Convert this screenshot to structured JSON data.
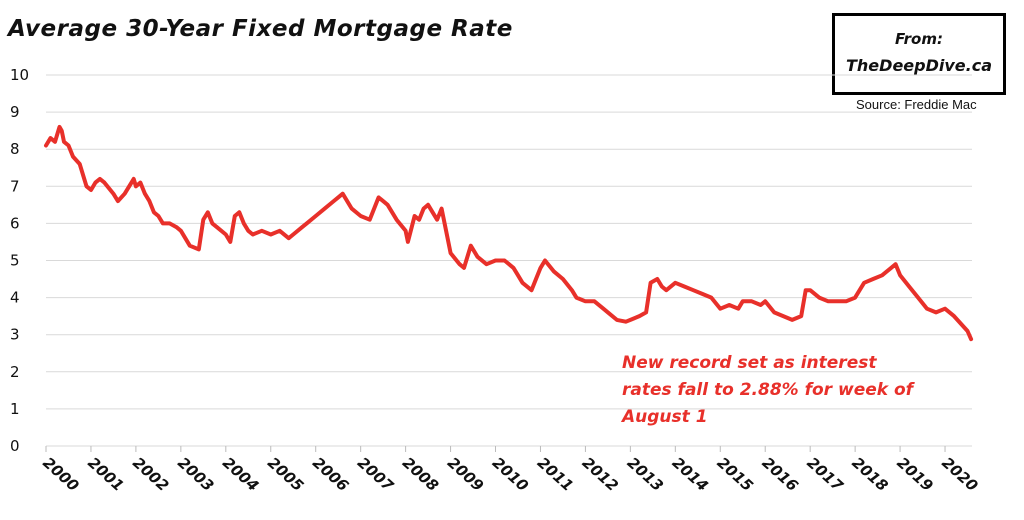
{
  "header": {
    "title": "Average 30-Year Fixed Mortgage Rate",
    "brand_from": "From:",
    "brand_site": "TheDeepDive.ca",
    "source": "Source: Freddie Mac"
  },
  "annotation": "New record set as interest rates fall to 2.88% for week of August 1",
  "colors": {
    "line": "#e8302a",
    "grid": "#d9d9d9",
    "text": "#111111"
  },
  "chart_data": {
    "type": "line",
    "title": "Average 30-Year Fixed Mortgage Rate",
    "xlabel": "",
    "ylabel": "",
    "ylim": [
      0,
      10
    ],
    "xlim": [
      2000,
      2020.6
    ],
    "yticks": [
      "0",
      "1",
      "2",
      "3",
      "4",
      "5",
      "6",
      "7",
      "8",
      "9",
      "10"
    ],
    "xticks": [
      "2000",
      "2001",
      "2002",
      "2003",
      "2004",
      "2005",
      "2006",
      "2007",
      "2008",
      "2009",
      "2010",
      "2011",
      "2012",
      "2013",
      "2014",
      "2015",
      "2016",
      "2017",
      "2018",
      "2019",
      "2020"
    ],
    "grid": "horizontal",
    "series": [
      {
        "x": [
          2000.0,
          2000.1,
          2000.2,
          2000.3,
          2000.35,
          2000.4,
          2000.5,
          2000.6,
          2000.75,
          2000.9,
          2001.0,
          2001.1,
          2001.2,
          2001.3,
          2001.5,
          2001.6,
          2001.75,
          2001.85,
          2001.95,
          2002.0,
          2002.1,
          2002.2,
          2002.3,
          2002.4,
          2002.5,
          2002.6,
          2002.75,
          2002.9,
          2003.0,
          2003.2,
          2003.4,
          2003.5,
          2003.6,
          2003.7,
          2003.8,
          2004.0,
          2004.1,
          2004.2,
          2004.3,
          2004.4,
          2004.5,
          2004.6,
          2004.8,
          2005.0,
          2005.2,
          2005.4,
          2005.5,
          2005.7,
          2005.8,
          2006.0,
          2006.2,
          2006.4,
          2006.5,
          2006.6,
          2006.8,
          2007.0,
          2007.2,
          2007.4,
          2007.5,
          2007.6,
          2007.8,
          2008.0,
          2008.05,
          2008.2,
          2008.3,
          2008.4,
          2008.5,
          2008.6,
          2008.7,
          2008.8,
          2008.9,
          2009.0,
          2009.2,
          2009.3,
          2009.45,
          2009.6,
          2009.8,
          2010.0,
          2010.2,
          2010.4,
          2010.5,
          2010.6,
          2010.8,
          2010.9,
          2011.0,
          2011.1,
          2011.3,
          2011.5,
          2011.7,
          2011.8,
          2012.0,
          2012.2,
          2012.4,
          2012.5,
          2012.7,
          2012.9,
          2013.0,
          2013.2,
          2013.35,
          2013.45,
          2013.6,
          2013.7,
          2013.8,
          2014.0,
          2014.2,
          2014.4,
          2014.6,
          2014.8,
          2015.0,
          2015.2,
          2015.4,
          2015.5,
          2015.7,
          2015.9,
          2016.0,
          2016.2,
          2016.4,
          2016.6,
          2016.8,
          2016.9,
          2017.0,
          2017.2,
          2017.4,
          2017.6,
          2017.8,
          2018.0,
          2018.2,
          2018.4,
          2018.6,
          2018.8,
          2018.9,
          2019.0,
          2019.2,
          2019.4,
          2019.6,
          2019.8,
          2020.0,
          2020.2,
          2020.35,
          2020.5,
          2020.58
        ],
        "values": [
          8.1,
          8.3,
          8.2,
          8.6,
          8.5,
          8.2,
          8.1,
          7.8,
          7.6,
          7.0,
          6.9,
          7.1,
          7.2,
          7.1,
          6.8,
          6.6,
          6.8,
          7.0,
          7.2,
          7.0,
          7.1,
          6.8,
          6.6,
          6.3,
          6.2,
          6.0,
          6.0,
          5.9,
          5.8,
          5.4,
          5.3,
          6.1,
          6.3,
          6.0,
          5.9,
          5.7,
          5.5,
          6.2,
          6.3,
          6.0,
          5.8,
          5.7,
          5.8,
          5.7,
          5.8,
          5.6,
          5.7,
          5.9,
          6.0,
          6.2,
          6.4,
          6.6,
          6.7,
          6.8,
          6.4,
          6.2,
          6.1,
          6.7,
          6.6,
          6.5,
          6.1,
          5.8,
          5.5,
          6.2,
          6.1,
          6.4,
          6.5,
          6.3,
          6.1,
          6.4,
          5.8,
          5.2,
          4.9,
          4.8,
          5.4,
          5.1,
          4.9,
          5.0,
          5.0,
          4.8,
          4.6,
          4.4,
          4.2,
          4.5,
          4.8,
          5.0,
          4.7,
          4.5,
          4.2,
          4.0,
          3.9,
          3.9,
          3.7,
          3.6,
          3.4,
          3.35,
          3.4,
          3.5,
          3.6,
          4.4,
          4.5,
          4.3,
          4.2,
          4.4,
          4.3,
          4.2,
          4.1,
          4.0,
          3.7,
          3.8,
          3.7,
          3.9,
          3.9,
          3.8,
          3.9,
          3.6,
          3.5,
          3.4,
          3.5,
          4.2,
          4.2,
          4.0,
          3.9,
          3.9,
          3.9,
          4.0,
          4.4,
          4.5,
          4.6,
          4.8,
          4.9,
          4.6,
          4.3,
          4.0,
          3.7,
          3.6,
          3.7,
          3.5,
          3.3,
          3.1,
          2.88
        ]
      }
    ]
  }
}
